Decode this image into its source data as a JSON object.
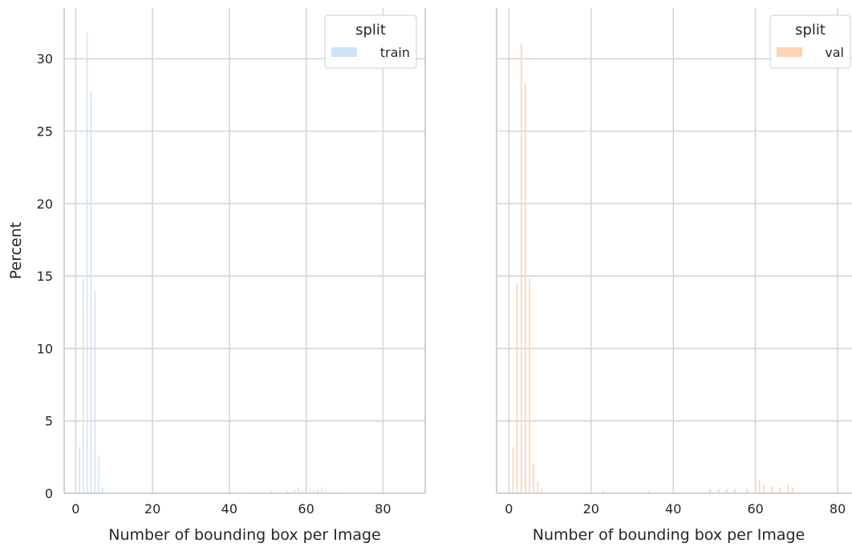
{
  "chart_data": [
    {
      "type": "bar",
      "subtype": "histogram",
      "xlabel": "Number of bounding box per Image",
      "ylabel": "Percent",
      "xlim": [
        -3,
        91
      ],
      "ylim": [
        0,
        33.5
      ],
      "xticks": [
        0,
        20,
        40,
        60,
        80
      ],
      "yticks": [
        0,
        5,
        10,
        15,
        20,
        25,
        30
      ],
      "grid": true,
      "legend": {
        "title": "split",
        "placement": "top-right"
      },
      "series": [
        {
          "name": "train",
          "color": "#cfe3f6",
          "x": [
            1,
            2,
            3,
            4,
            5,
            6,
            7,
            45,
            47,
            49,
            51,
            53,
            55,
            57,
            58,
            59,
            61,
            62,
            63,
            64,
            65,
            67,
            69
          ],
          "values": [
            3.2,
            14.8,
            31.8,
            27.8,
            14.0,
            2.6,
            0.4,
            0.1,
            0.1,
            0.1,
            0.2,
            0.1,
            0.2,
            0.3,
            0.4,
            0.2,
            0.3,
            0.2,
            0.3,
            0.4,
            0.2,
            0.1,
            0.1
          ]
        }
      ]
    },
    {
      "type": "bar",
      "subtype": "histogram",
      "xlabel": "Number of bounding box per Image",
      "ylabel": "",
      "xlim": [
        -3,
        83.5
      ],
      "ylim": [
        0,
        33.5
      ],
      "xticks": [
        0,
        20,
        40,
        60,
        80
      ],
      "yticks": [
        0,
        5,
        10,
        15,
        20,
        25,
        30
      ],
      "grid": true,
      "legend": {
        "title": "split",
        "placement": "top-right"
      },
      "series": [
        {
          "name": "val",
          "color": "#fbd3b5",
          "x": [
            1,
            2,
            3,
            4,
            5,
            6,
            7,
            8,
            20,
            23,
            34,
            49,
            51,
            53,
            55,
            58,
            61,
            62,
            64,
            66,
            68,
            69
          ],
          "values": [
            3.2,
            14.5,
            31.0,
            28.3,
            14.8,
            2.0,
            0.8,
            0.3,
            0.3,
            0.2,
            0.2,
            0.3,
            0.3,
            0.3,
            0.3,
            0.3,
            0.9,
            0.6,
            0.5,
            0.4,
            0.6,
            0.4
          ]
        }
      ]
    }
  ]
}
